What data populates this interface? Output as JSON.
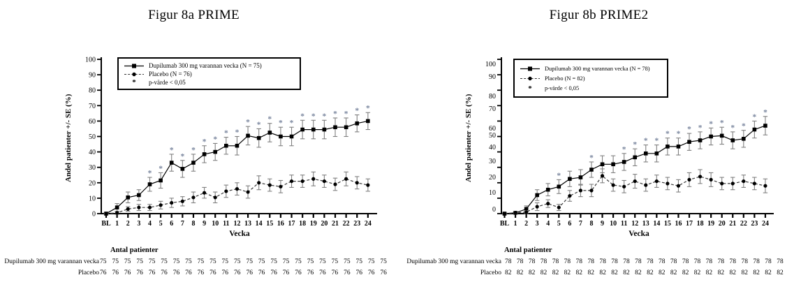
{
  "chart_data": [
    {
      "type": "line",
      "title": "Figur 8a PRIME",
      "xlabel": "Vecka",
      "ylabel": "Andel patienter +/- SE (%)",
      "ylim": [
        0,
        100
      ],
      "yticks": [
        0,
        10,
        20,
        30,
        40,
        50,
        60,
        70,
        80,
        90,
        100
      ],
      "grid": false,
      "legend_position": "top-left-inside",
      "error_bar_color": "#7f7f7f",
      "categories": [
        "BL",
        "1",
        "2",
        "3",
        "4",
        "5",
        "6",
        "7",
        "8",
        "9",
        "10",
        "11",
        "12",
        "13",
        "14",
        "15",
        "16",
        "17",
        "18",
        "19",
        "20",
        "21",
        "22",
        "23",
        "24"
      ],
      "series": [
        {
          "name": "Dupilumab 300 mg varannan vecka (N = 75)",
          "marker": "square",
          "line": "solid",
          "color": "#000000",
          "values": [
            0,
            4,
            10.5,
            12,
            19,
            21.5,
            33,
            29,
            33,
            38.5,
            40,
            44,
            44,
            50.5,
            49,
            52.5,
            50,
            50,
            54.5,
            54.5,
            54.5,
            56,
            56,
            58.5,
            60
          ],
          "se": [
            0.5,
            2.5,
            3.5,
            3.5,
            4.5,
            5,
            5.5,
            5.5,
            5.5,
            5.5,
            5.5,
            5.5,
            6,
            6,
            6,
            6,
            6,
            6,
            6,
            6,
            6,
            6,
            6,
            5.5,
            5.5
          ]
        },
        {
          "name": "Placebo (N = 76)",
          "marker": "circle",
          "line": "dashed",
          "color": "#000000",
          "values": [
            0,
            0.5,
            3,
            4,
            4,
            5.5,
            7,
            8,
            10.5,
            13.5,
            10.5,
            14.5,
            16,
            14,
            20,
            18.5,
            17.5,
            21,
            21,
            22.5,
            21,
            19,
            22.5,
            20,
            18.5
          ],
          "se": [
            0.3,
            1,
            1.5,
            2,
            2,
            2.5,
            3,
            3,
            3.5,
            3.5,
            3.5,
            4,
            4,
            4,
            4.5,
            4,
            4,
            4,
            4,
            4.5,
            4,
            4,
            4.5,
            4,
            4
          ]
        }
      ],
      "significance": {
        "symbol": "*",
        "label": "p-värde < 0,05",
        "color": "#7c88a0",
        "weeks": [
          4,
          5,
          6,
          7,
          8,
          9,
          10,
          11,
          12,
          13,
          14,
          15,
          16,
          17,
          18,
          19,
          20,
          21,
          22,
          23,
          24
        ]
      },
      "footer": {
        "header": "Antal patienter",
        "rows": [
          {
            "label": "Dupilumab 300 mg varannan vecka",
            "values": [
              "75",
              "75",
              "75",
              "75",
              "75",
              "75",
              "75",
              "75",
              "75",
              "75",
              "75",
              "75",
              "75",
              "75",
              "75",
              "75",
              "75",
              "75",
              "75",
              "75",
              "75",
              "75",
              "75",
              "75"
            ]
          },
          {
            "label": "Placebo",
            "values": [
              "76",
              "76",
              "76",
              "76",
              "76",
              "76",
              "76",
              "76",
              "76",
              "76",
              "76",
              "76",
              "76",
              "76",
              "76",
              "76",
              "76",
              "76",
              "76",
              "76",
              "76",
              "76",
              "76",
              "76"
            ]
          }
        ]
      }
    },
    {
      "type": "line",
      "title": "Figur 8b PRIME2",
      "xlabel": "Vecka",
      "ylabel": "Andel patienter +/- SE (%)",
      "ylim": [
        0,
        100
      ],
      "yticks": [
        0,
        10,
        20,
        30,
        40,
        50,
        60,
        70,
        80,
        90,
        100
      ],
      "ytick_label_y": [
        300,
        276,
        254,
        231,
        211,
        194,
        184,
        156,
        138,
        110,
        92
      ],
      "grid": false,
      "legend_position": "top-left-inside",
      "error_bar_color": "#7f7f7f",
      "categories": [
        "BL",
        "1",
        "2",
        "3",
        "4",
        "5",
        "6",
        "7",
        "8",
        "9",
        "10",
        "11",
        "12",
        "13",
        "14",
        "15",
        "16",
        "17",
        "18",
        "19",
        "20",
        "21",
        "22",
        "23",
        "24"
      ],
      "series": [
        {
          "name": "Dupilumab 300 mg varannan vecka (N = 78)",
          "marker": "square",
          "line": "solid",
          "color": "#000000",
          "values": [
            0,
            0.5,
            3,
            12,
            15.5,
            17.5,
            22.5,
            23.5,
            28.5,
            32,
            32,
            33.5,
            36.5,
            39,
            39,
            43.5,
            43.5,
            46.5,
            47.5,
            50,
            50.5,
            47.5,
            48.5,
            54.5,
            57
          ],
          "se": [
            0.5,
            1,
            2,
            3.5,
            4,
            4.5,
            5,
            5,
            5,
            5.5,
            5.5,
            5.5,
            5.5,
            5.5,
            5.5,
            5.5,
            5.5,
            5.5,
            5.5,
            5.5,
            5.5,
            5.5,
            5.5,
            5.5,
            6
          ]
        },
        {
          "name": "Placebo (N = 82)",
          "marker": "circle",
          "line": "dashed",
          "color": "#000000",
          "values": [
            0,
            0.5,
            1,
            4.5,
            6.5,
            4,
            11.5,
            15,
            15,
            24.5,
            18.5,
            17.5,
            21,
            18.5,
            21,
            19.5,
            18,
            22,
            24,
            22,
            19.5,
            19.5,
            21,
            19.5,
            18
          ],
          "se": [
            0.3,
            0.8,
            1,
            2.5,
            2.5,
            2,
            3.5,
            4,
            4,
            4.5,
            4,
            4,
            4.5,
            4,
            4,
            4,
            4,
            4.5,
            4.5,
            4.5,
            4,
            4,
            4,
            4,
            4.5
          ]
        }
      ],
      "significance": {
        "symbol": "*",
        "label": "p-värde < 0,05",
        "color": "#7c88a0",
        "weeks": [
          5,
          8,
          11,
          12,
          13,
          14,
          15,
          16,
          17,
          18,
          19,
          20,
          21,
          22,
          23,
          24
        ]
      },
      "footer": {
        "header": "Antal patienter",
        "rows": [
          {
            "label": "Dupilumab 300 mg varannan vecka",
            "values": [
              "78",
              "78",
              "78",
              "78",
              "78",
              "78",
              "78",
              "78",
              "78",
              "78",
              "78",
              "78",
              "78",
              "78",
              "78",
              "78",
              "78",
              "78",
              "78",
              "78",
              "78",
              "78",
              "78",
              "78"
            ]
          },
          {
            "label": "Placebo",
            "values": [
              "82",
              "82",
              "82",
              "82",
              "82",
              "82",
              "82",
              "82",
              "82",
              "82",
              "82",
              "82",
              "82",
              "82",
              "82",
              "82",
              "82",
              "82",
              "82",
              "82",
              "82",
              "82",
              "82",
              "82"
            ]
          }
        ]
      }
    }
  ]
}
